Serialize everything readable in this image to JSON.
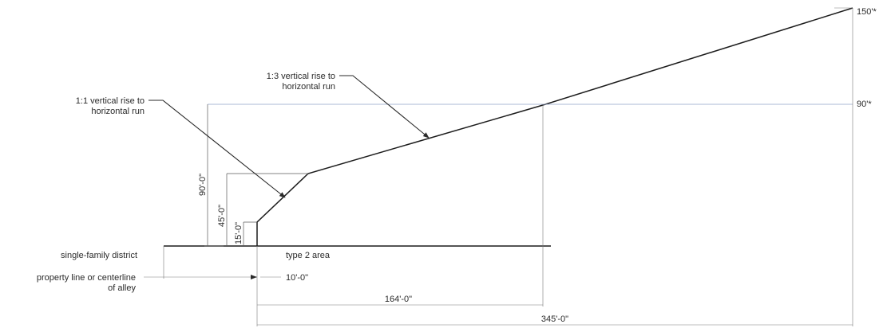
{
  "labels": {
    "rise_1_1": [
      "1:1 vertical rise to",
      "horizontal run"
    ],
    "rise_1_3": [
      "1:3 vertical rise to",
      "horizontal run"
    ],
    "single_family": "single-family district",
    "type2": "type 2 area",
    "property_line": [
      "property line or centerline",
      "of alley"
    ]
  },
  "heights": {
    "h150": "150'*",
    "h90": "90'*"
  },
  "dimensions": {
    "v90": "90'-0\"",
    "v45": "45'-0\"",
    "v15": "15'-0\"",
    "h10": "10'-0\"",
    "h164": "164'-0\"",
    "h345": "345'-0\""
  }
}
